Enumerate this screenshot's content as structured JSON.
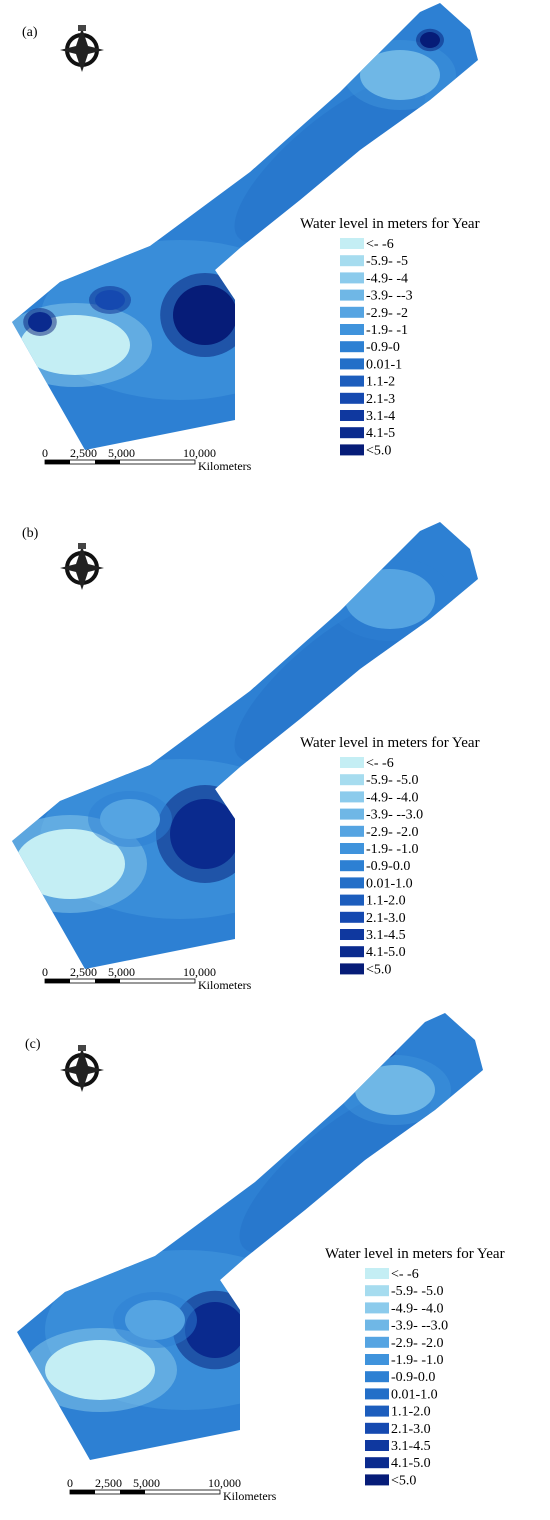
{
  "panels": [
    {
      "label": "(a)",
      "legend_title": "Water level in meters for Year",
      "legend": [
        "<- -6",
        "-5.9- -5",
        "-4.9- -4",
        "-3.9- --3",
        "-2.9- -2",
        "-1.9- -1",
        "-0.9-0",
        "0.01-1",
        "1.1-2",
        "2.1-3",
        "3.1-4",
        "4.1-5",
        "<5.0"
      ],
      "scale": [
        "0",
        "2,500",
        "5,000",
        "10,000"
      ],
      "unit": "Kilometers"
    },
    {
      "label": "(b)",
      "legend_title": "Water level in meters for Year",
      "legend": [
        "<- -6",
        "-5.9- -5.0",
        "-4.9- -4.0",
        "-3.9- --3.0",
        "-2.9- -2.0",
        "-1.9- -1.0",
        "-0.9-0.0",
        "0.01-1.0",
        "1.1-2.0",
        "2.1-3.0",
        "3.1-4.5",
        "4.1-5.0",
        "<5.0"
      ],
      "scale": [
        "0",
        "2,500",
        "5,000",
        "10,000"
      ],
      "unit": "Kilometers"
    },
    {
      "label": "(c)",
      "legend_title": "Water level in meters for Year",
      "legend": [
        "<- -6",
        "-5.9- -5.0",
        "-4.9- -4.0",
        "-3.9- --3.0",
        "-2.9- -2.0",
        "-1.9- -1.0",
        "-0.9-0.0",
        "0.01-1.0",
        "1.1-2.0",
        "2.1-3.0",
        "3.1-4.5",
        "4.1-5.0",
        "<5.0"
      ],
      "scale": [
        "0",
        "2,500",
        "5,000",
        "10,000"
      ],
      "unit": "Kilometers"
    }
  ],
  "legend_colors": [
    "#c4eef4",
    "#a6dcef",
    "#8ccbec",
    "#6fb7e6",
    "#55a4e2",
    "#3f93dc",
    "#2d80d3",
    "#236fc8",
    "#1c5dbd",
    "#1549b0",
    "#0f389f",
    "#0a2a8e",
    "#061c78"
  ]
}
